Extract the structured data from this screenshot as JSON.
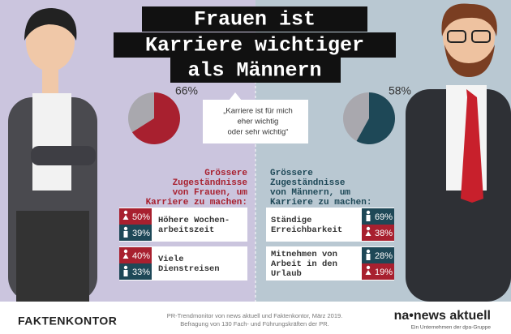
{
  "title_lines": [
    "Frauen ist",
    "Karriere wichtiger",
    "als Männern"
  ],
  "quote": [
    "„Karriere ist für mich",
    "eher wichtig",
    "oder sehr wichtig“"
  ],
  "women": {
    "pie": {
      "value": 66,
      "label": "66%"
    },
    "heading": [
      "Grössere",
      "Zugeständnisse",
      "von Frauen, um",
      "Karriere zu machen:"
    ],
    "items": [
      {
        "text": [
          "Höhere Wochen-",
          "arbeitszeit"
        ],
        "women": "50%",
        "men": "39%"
      },
      {
        "text": [
          "Viele",
          "Dienstreisen"
        ],
        "women": "40%",
        "men": "33%"
      }
    ]
  },
  "men": {
    "pie": {
      "value": 58,
      "label": "58%"
    },
    "heading": [
      "Grössere",
      "Zugeständnisse",
      "von Männern, um",
      "Karriere zu machen:"
    ],
    "items": [
      {
        "text": [
          "Ständige",
          "Erreichbarkeit"
        ],
        "men": "69%",
        "women": "38%"
      },
      {
        "text": [
          "Mitnehmen von",
          "Arbeit in den",
          "Urlaub"
        ],
        "men": "28%",
        "women": "19%"
      }
    ]
  },
  "footer": {
    "brand": "FAKTENKONTOR",
    "source": [
      "PR-Trendmonitor von news aktuell und Faktenkontor, März 2019.",
      "Befragung von 130 Fach- und Führungskräften der PR."
    ],
    "logo": "na•news aktuell",
    "tagline": "Ein Unternehmen der dpa-Gruppe"
  }
}
